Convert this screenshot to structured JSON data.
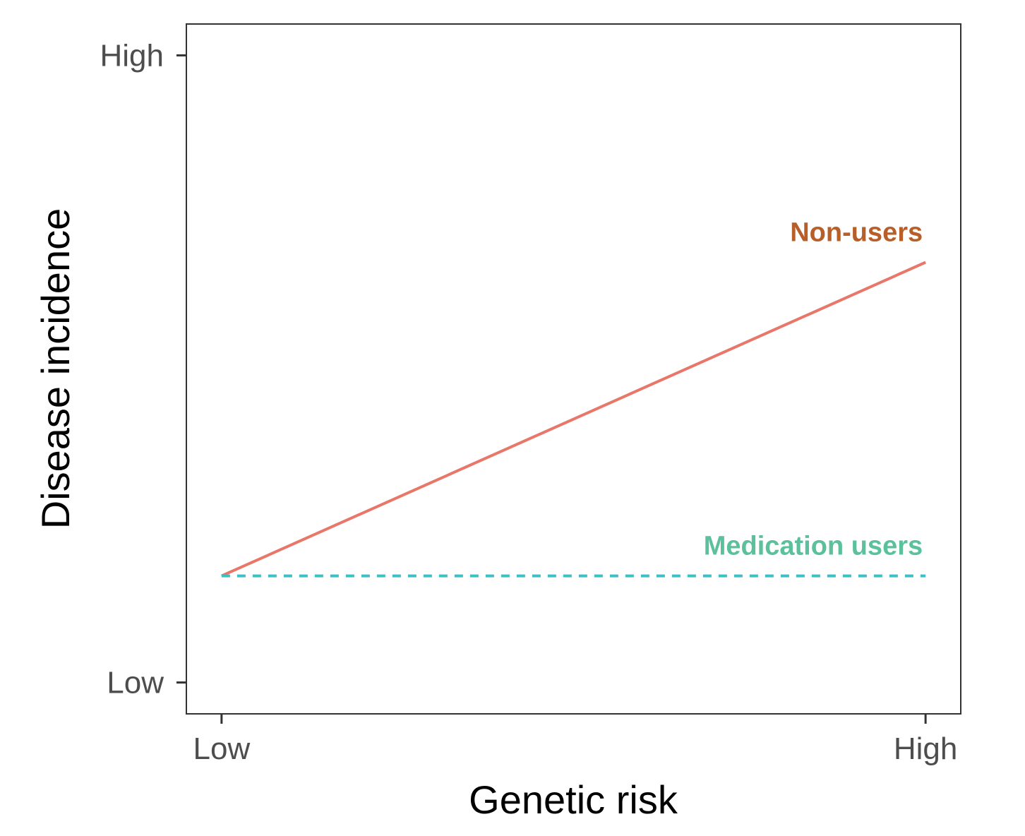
{
  "chart_data": {
    "type": "line",
    "xlabel": "Genetic risk",
    "ylabel": "Disease incidence",
    "x_ticks": [
      {
        "value": 0,
        "label": "Low"
      },
      {
        "value": 1,
        "label": "High"
      }
    ],
    "y_ticks": [
      {
        "value": 0,
        "label": "Low"
      },
      {
        "value": 1,
        "label": "High"
      }
    ],
    "xlim": [
      -0.05,
      1.05
    ],
    "ylim": [
      -0.05,
      1.05
    ],
    "grid": false,
    "series": [
      {
        "name": "Non-users",
        "x": [
          0,
          1
        ],
        "y": [
          0.17,
          0.67
        ],
        "line_color": "#E8776A",
        "label_color": "#B85E28",
        "dash": "solid"
      },
      {
        "name": "Medication users",
        "x": [
          0,
          1
        ],
        "y": [
          0.17,
          0.17
        ],
        "line_color": "#3DBFC4",
        "label_color": "#5BC09C",
        "dash": "dashed"
      }
    ]
  }
}
